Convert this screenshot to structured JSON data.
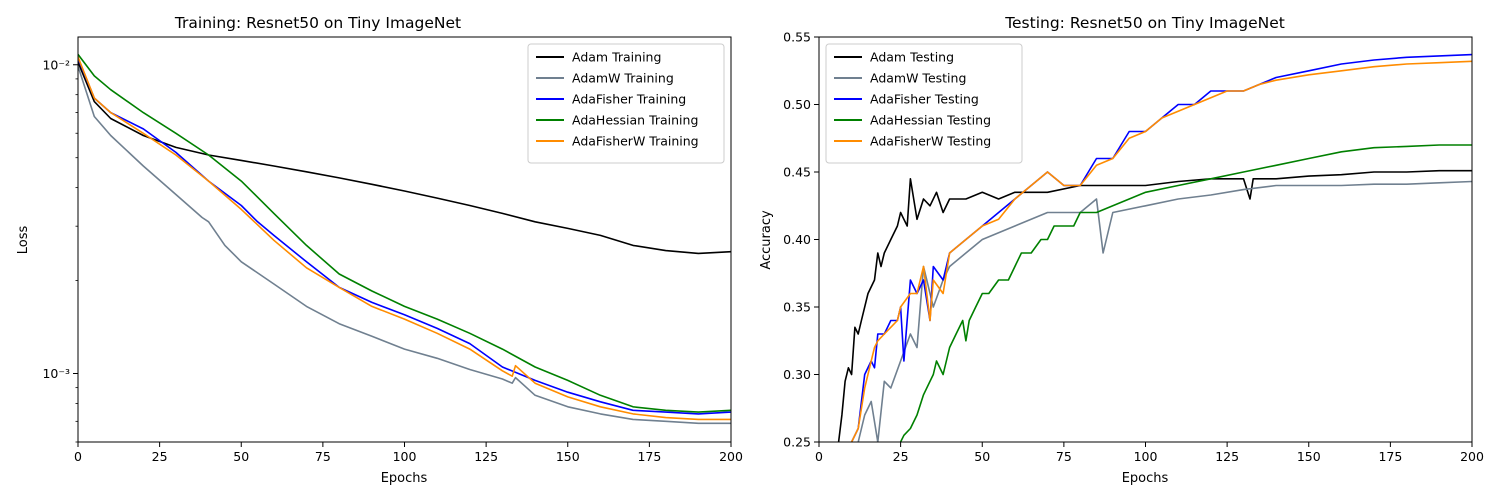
{
  "chart_data": [
    {
      "type": "line",
      "title": "Training: Resnet50 on Tiny ImageNet",
      "xlabel": "Epochs",
      "ylabel": "Loss",
      "yscale": "log",
      "xlim": [
        0,
        200
      ],
      "ylim": [
        0.0006,
        0.0123
      ],
      "xticks": [
        0,
        25,
        50,
        75,
        100,
        125,
        150,
        175,
        200
      ],
      "xtick_labels": [
        "0",
        "25",
        "50",
        "75",
        "100",
        "125",
        "150",
        "175",
        "200"
      ],
      "yticks": [
        0.001,
        0.01
      ],
      "ytick_labels": [
        "10⁻³",
        "10⁻²"
      ],
      "grid": false,
      "legend_position": "top-right",
      "series": [
        {
          "name": "Adam Training",
          "color": "#000000",
          "x": [
            0,
            5,
            10,
            20,
            30,
            40,
            50,
            60,
            70,
            80,
            90,
            100,
            110,
            120,
            130,
            140,
            150,
            160,
            170,
            180,
            190,
            200
          ],
          "y": [
            0.0102,
            0.0076,
            0.0067,
            0.0059,
            0.0054,
            0.0051,
            0.0049,
            0.0047,
            0.0045,
            0.0043,
            0.0041,
            0.0039,
            0.0037,
            0.0035,
            0.0033,
            0.0031,
            0.00295,
            0.0028,
            0.0026,
            0.0025,
            0.00245,
            0.00248
          ]
        },
        {
          "name": "AdamW Training",
          "color": "#708090",
          "x": [
            0,
            5,
            10,
            20,
            30,
            38,
            40,
            45,
            50,
            60,
            70,
            80,
            90,
            100,
            110,
            120,
            130,
            133,
            134,
            140,
            150,
            160,
            170,
            180,
            190,
            200
          ],
          "y": [
            0.0099,
            0.0068,
            0.0059,
            0.0047,
            0.0038,
            0.0032,
            0.0031,
            0.0026,
            0.0023,
            0.00195,
            0.00165,
            0.00145,
            0.00132,
            0.0012,
            0.00112,
            0.00103,
            0.00096,
            0.00093,
            0.00097,
            0.00085,
            0.00078,
            0.00074,
            0.00071,
            0.0007,
            0.00069,
            0.00069
          ]
        },
        {
          "name": "AdaFisher Training",
          "color": "#0000ff",
          "x": [
            0,
            5,
            10,
            20,
            30,
            40,
            50,
            55,
            60,
            70,
            80,
            90,
            100,
            110,
            120,
            130,
            140,
            150,
            160,
            170,
            180,
            190,
            200
          ],
          "y": [
            0.0105,
            0.0078,
            0.007,
            0.0062,
            0.0052,
            0.0042,
            0.0035,
            0.0031,
            0.0028,
            0.0023,
            0.0019,
            0.0017,
            0.00155,
            0.0014,
            0.00125,
            0.00105,
            0.00095,
            0.00087,
            0.00081,
            0.00076,
            0.00075,
            0.00074,
            0.00075
          ]
        },
        {
          "name": "AdaHessian Training",
          "color": "#008000",
          "x": [
            0,
            5,
            10,
            20,
            30,
            40,
            50,
            60,
            70,
            80,
            90,
            100,
            110,
            120,
            130,
            140,
            150,
            160,
            170,
            180,
            190,
            200
          ],
          "y": [
            0.0108,
            0.0092,
            0.0083,
            0.007,
            0.006,
            0.0051,
            0.0042,
            0.0033,
            0.0026,
            0.0021,
            0.00185,
            0.00165,
            0.0015,
            0.00135,
            0.0012,
            0.00105,
            0.00095,
            0.00085,
            0.00078,
            0.00076,
            0.00075,
            0.00076
          ]
        },
        {
          "name": "AdaFisherW Training",
          "color": "#ff8c00",
          "x": [
            0,
            5,
            10,
            20,
            30,
            40,
            50,
            60,
            70,
            80,
            90,
            100,
            110,
            120,
            130,
            133,
            134,
            140,
            150,
            160,
            170,
            180,
            190,
            200
          ],
          "y": [
            0.0106,
            0.0078,
            0.007,
            0.006,
            0.0051,
            0.0042,
            0.0034,
            0.0027,
            0.0022,
            0.0019,
            0.00165,
            0.0015,
            0.00135,
            0.0012,
            0.00102,
            0.00098,
            0.00106,
            0.00093,
            0.00084,
            0.00078,
            0.00074,
            0.00072,
            0.00071,
            0.00071
          ]
        }
      ]
    },
    {
      "type": "line",
      "title": "Testing: Resnet50 on Tiny ImageNet",
      "xlabel": "Epochs",
      "ylabel": "Accuracy",
      "yscale": "linear",
      "xlim": [
        0,
        200
      ],
      "ylim": [
        0.25,
        0.55
      ],
      "xticks": [
        0,
        25,
        50,
        75,
        100,
        125,
        150,
        175,
        200
      ],
      "xtick_labels": [
        "0",
        "25",
        "50",
        "75",
        "100",
        "125",
        "150",
        "175",
        "200"
      ],
      "yticks": [
        0.25,
        0.3,
        0.35,
        0.4,
        0.45,
        0.5,
        0.55
      ],
      "ytick_labels": [
        "0.25",
        "0.30",
        "0.35",
        "0.40",
        "0.45",
        "0.50",
        "0.55"
      ],
      "grid": false,
      "legend_position": "top-left",
      "series": [
        {
          "name": "Adam Testing",
          "color": "#000000",
          "x": [
            6,
            7,
            8,
            9,
            10,
            11,
            12,
            13,
            15,
            17,
            18,
            19,
            20,
            22,
            24,
            25,
            26,
            27,
            28,
            30,
            32,
            34,
            36,
            38,
            40,
            45,
            50,
            55,
            60,
            70,
            80,
            90,
            100,
            110,
            120,
            125,
            130,
            132,
            133,
            135,
            140,
            150,
            160,
            170,
            180,
            190,
            200
          ],
          "y": [
            0.25,
            0.27,
            0.295,
            0.305,
            0.3,
            0.335,
            0.33,
            0.34,
            0.36,
            0.37,
            0.39,
            0.38,
            0.39,
            0.4,
            0.41,
            0.42,
            0.415,
            0.41,
            0.445,
            0.415,
            0.43,
            0.425,
            0.435,
            0.42,
            0.43,
            0.43,
            0.435,
            0.43,
            0.435,
            0.435,
            0.44,
            0.44,
            0.44,
            0.443,
            0.445,
            0.445,
            0.445,
            0.43,
            0.445,
            0.445,
            0.445,
            0.447,
            0.448,
            0.45,
            0.45,
            0.451,
            0.451
          ]
        },
        {
          "name": "AdamW Testing",
          "color": "#708090",
          "x": [
            12,
            14,
            16,
            18,
            20,
            22,
            25,
            28,
            30,
            32,
            35,
            38,
            40,
            45,
            50,
            55,
            60,
            70,
            80,
            85,
            87,
            90,
            100,
            110,
            120,
            130,
            140,
            150,
            160,
            170,
            180,
            190,
            200
          ],
          "y": [
            0.25,
            0.27,
            0.28,
            0.25,
            0.295,
            0.29,
            0.31,
            0.33,
            0.32,
            0.38,
            0.35,
            0.37,
            0.38,
            0.39,
            0.4,
            0.405,
            0.41,
            0.42,
            0.42,
            0.43,
            0.39,
            0.42,
            0.425,
            0.43,
            0.433,
            0.437,
            0.44,
            0.44,
            0.44,
            0.441,
            0.441,
            0.442,
            0.443
          ]
        },
        {
          "name": "AdaFisher Testing",
          "color": "#0000ff",
          "x": [
            10,
            12,
            14,
            16,
            17,
            18,
            20,
            22,
            24,
            25,
            26,
            28,
            30,
            32,
            34,
            35,
            38,
            40,
            45,
            50,
            55,
            60,
            65,
            70,
            75,
            80,
            85,
            90,
            95,
            100,
            105,
            110,
            115,
            120,
            125,
            130,
            135,
            140,
            150,
            160,
            170,
            180,
            190,
            200
          ],
          "y": [
            0.25,
            0.26,
            0.3,
            0.31,
            0.305,
            0.33,
            0.33,
            0.34,
            0.34,
            0.35,
            0.31,
            0.37,
            0.36,
            0.37,
            0.34,
            0.38,
            0.37,
            0.39,
            0.4,
            0.41,
            0.42,
            0.43,
            0.44,
            0.45,
            0.44,
            0.44,
            0.46,
            0.46,
            0.48,
            0.48,
            0.49,
            0.5,
            0.5,
            0.51,
            0.51,
            0.51,
            0.515,
            0.52,
            0.525,
            0.53,
            0.533,
            0.535,
            0.536,
            0.537
          ]
        },
        {
          "name": "AdaHessian Testing",
          "color": "#008000",
          "x": [
            25,
            26,
            28,
            30,
            32,
            34,
            35,
            36,
            38,
            40,
            42,
            44,
            45,
            46,
            48,
            50,
            52,
            55,
            58,
            60,
            62,
            65,
            68,
            70,
            72,
            75,
            78,
            80,
            85,
            90,
            95,
            100,
            110,
            120,
            130,
            140,
            150,
            160,
            170,
            180,
            190,
            200
          ],
          "y": [
            0.25,
            0.255,
            0.26,
            0.27,
            0.285,
            0.295,
            0.3,
            0.31,
            0.3,
            0.32,
            0.33,
            0.34,
            0.325,
            0.34,
            0.35,
            0.36,
            0.36,
            0.37,
            0.37,
            0.38,
            0.39,
            0.39,
            0.4,
            0.4,
            0.41,
            0.41,
            0.41,
            0.42,
            0.42,
            0.425,
            0.43,
            0.435,
            0.44,
            0.445,
            0.45,
            0.455,
            0.46,
            0.465,
            0.468,
            0.469,
            0.47,
            0.47
          ]
        },
        {
          "name": "AdaFisherW Testing",
          "color": "#ff8c00",
          "x": [
            10,
            12,
            14,
            16,
            17,
            18,
            20,
            22,
            24,
            25,
            28,
            30,
            32,
            34,
            35,
            38,
            40,
            45,
            50,
            55,
            60,
            65,
            70,
            75,
            80,
            85,
            90,
            95,
            100,
            105,
            110,
            115,
            120,
            125,
            130,
            135,
            140,
            150,
            160,
            170,
            180,
            190,
            200
          ],
          "y": [
            0.25,
            0.26,
            0.29,
            0.31,
            0.32,
            0.325,
            0.33,
            0.335,
            0.34,
            0.35,
            0.36,
            0.36,
            0.38,
            0.34,
            0.37,
            0.36,
            0.39,
            0.4,
            0.41,
            0.415,
            0.43,
            0.44,
            0.45,
            0.44,
            0.44,
            0.455,
            0.46,
            0.475,
            0.48,
            0.49,
            0.495,
            0.5,
            0.505,
            0.51,
            0.51,
            0.515,
            0.518,
            0.522,
            0.525,
            0.528,
            0.53,
            0.531,
            0.532
          ]
        }
      ]
    }
  ]
}
